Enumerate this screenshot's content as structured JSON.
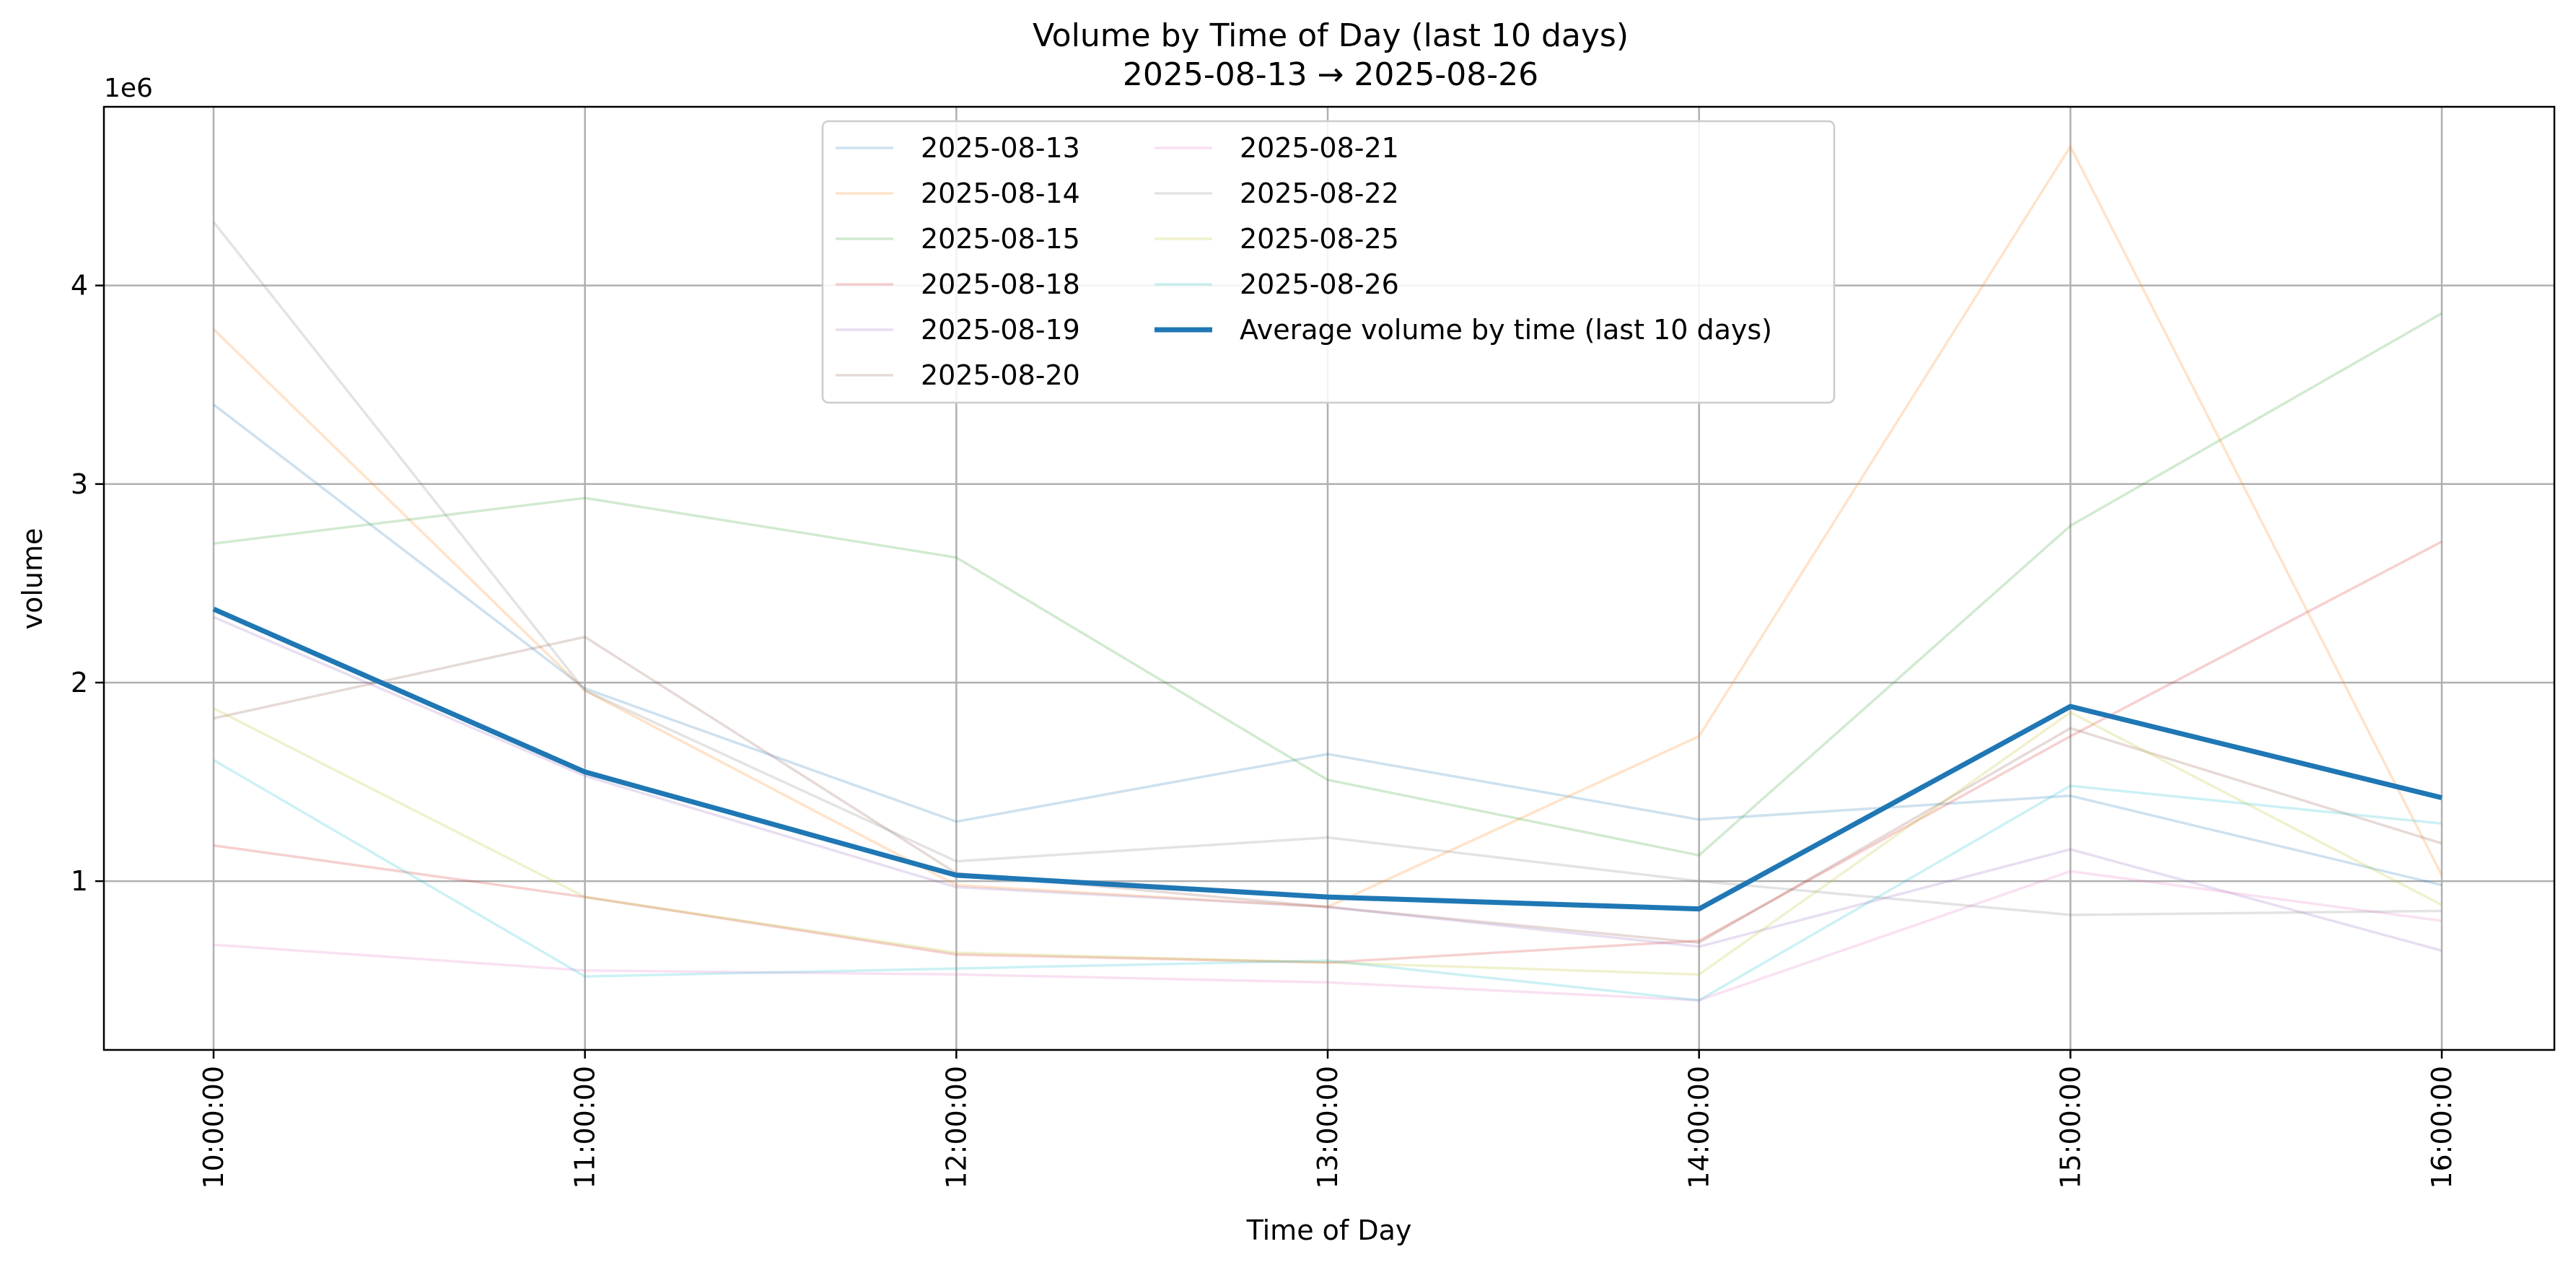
{
  "chart_data": {
    "type": "line",
    "title": "Volume by Time of Day (last 10 days)",
    "subtitle": "2025-08-13 → 2025-08-26",
    "xlabel": "Time of Day",
    "ylabel": "volume",
    "y_offset_label": "1e6",
    "categories": [
      "10:00:00",
      "11:00:00",
      "12:00:00",
      "13:00:00",
      "14:00:00",
      "15:00:00",
      "16:00:00"
    ],
    "yticks": [
      1,
      2,
      3,
      4
    ],
    "ylim": [
      0.15,
      4.9
    ],
    "y_scale_note": "values in units of 1e6",
    "grid": true,
    "legend_position": "upper center",
    "legend_columns": 2,
    "series": [
      {
        "name": "2025-08-13",
        "color": "#1f77b4",
        "values": [
          3.4,
          1.97,
          1.3,
          1.64,
          1.31,
          1.43,
          0.98
        ]
      },
      {
        "name": "2025-08-14",
        "color": "#ff7f0e",
        "values": [
          3.78,
          1.96,
          0.98,
          0.87,
          1.73,
          4.7,
          1.03
        ]
      },
      {
        "name": "2025-08-15",
        "color": "#2ca02c",
        "values": [
          2.7,
          2.93,
          2.63,
          1.51,
          1.13,
          2.79,
          3.86
        ]
      },
      {
        "name": "2025-08-18",
        "color": "#d62728",
        "values": [
          1.18,
          0.92,
          0.63,
          0.59,
          0.7,
          1.73,
          2.71
        ]
      },
      {
        "name": "2025-08-19",
        "color": "#9467bd",
        "values": [
          2.33,
          1.53,
          0.97,
          0.87,
          0.67,
          1.16,
          0.65
        ]
      },
      {
        "name": "2025-08-20",
        "color": "#8c564b",
        "values": [
          1.82,
          2.23,
          1.04,
          0.87,
          0.69,
          1.77,
          1.19
        ]
      },
      {
        "name": "2025-08-21",
        "color": "#e377c2",
        "values": [
          0.68,
          0.55,
          0.53,
          0.49,
          0.4,
          1.05,
          0.8
        ]
      },
      {
        "name": "2025-08-22",
        "color": "#7f7f7f",
        "values": [
          4.32,
          1.96,
          1.1,
          1.22,
          1.0,
          0.83,
          0.85
        ]
      },
      {
        "name": "2025-08-25",
        "color": "#bcbd22",
        "values": [
          1.87,
          0.92,
          0.64,
          0.59,
          0.53,
          1.85,
          0.88
        ]
      },
      {
        "name": "2025-08-26",
        "color": "#17becf",
        "values": [
          1.61,
          0.52,
          0.56,
          0.6,
          0.4,
          1.48,
          1.29
        ]
      }
    ],
    "average_series": {
      "name": "Average volume by time (last 10 days)",
      "color": "#1f77b4",
      "values": [
        2.37,
        1.55,
        1.03,
        0.92,
        0.86,
        1.88,
        1.42
      ]
    }
  }
}
